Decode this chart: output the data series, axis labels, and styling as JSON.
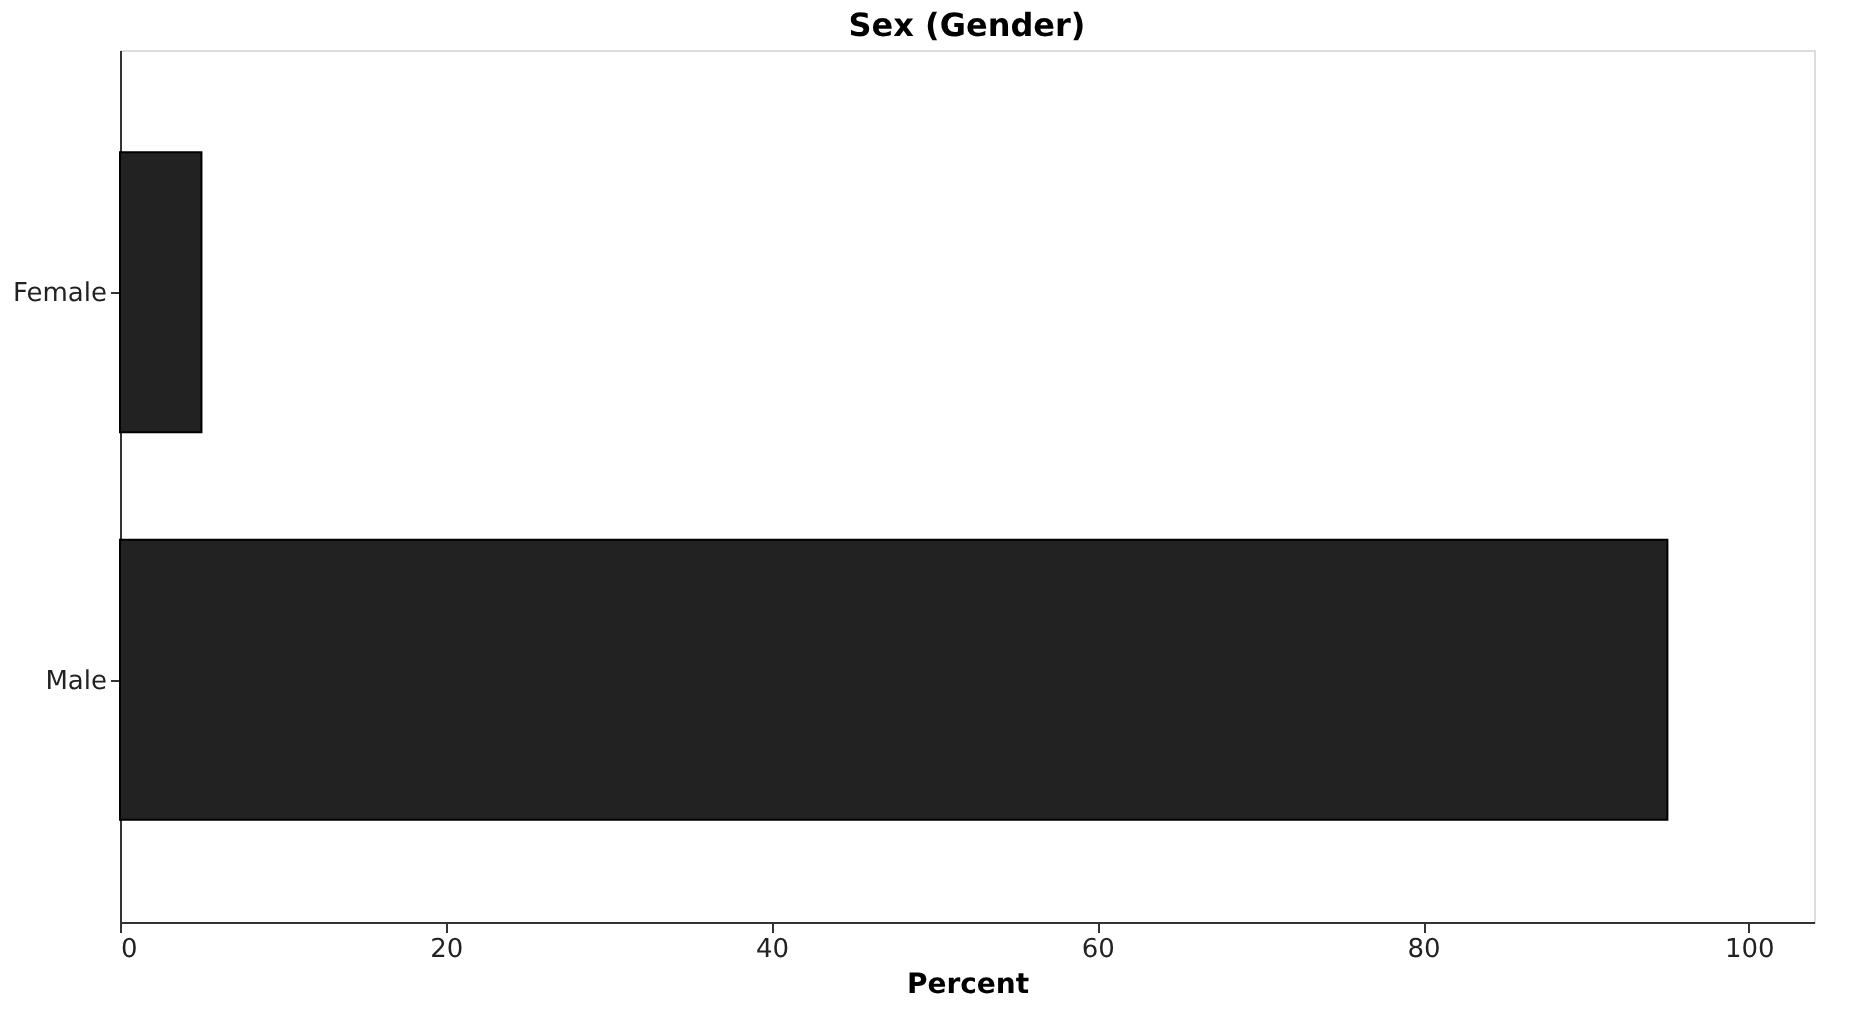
{
  "chart_data": {
    "type": "bar",
    "orientation": "horizontal",
    "title": "Sex (Gender)",
    "xlabel": "Percent",
    "categories": [
      "Female",
      "Male"
    ],
    "values": [
      5,
      95
    ],
    "color": "#222222",
    "xlim": [
      0,
      104
    ],
    "xticks": [
      0,
      20,
      40,
      60,
      80,
      100
    ],
    "grid": false
  }
}
